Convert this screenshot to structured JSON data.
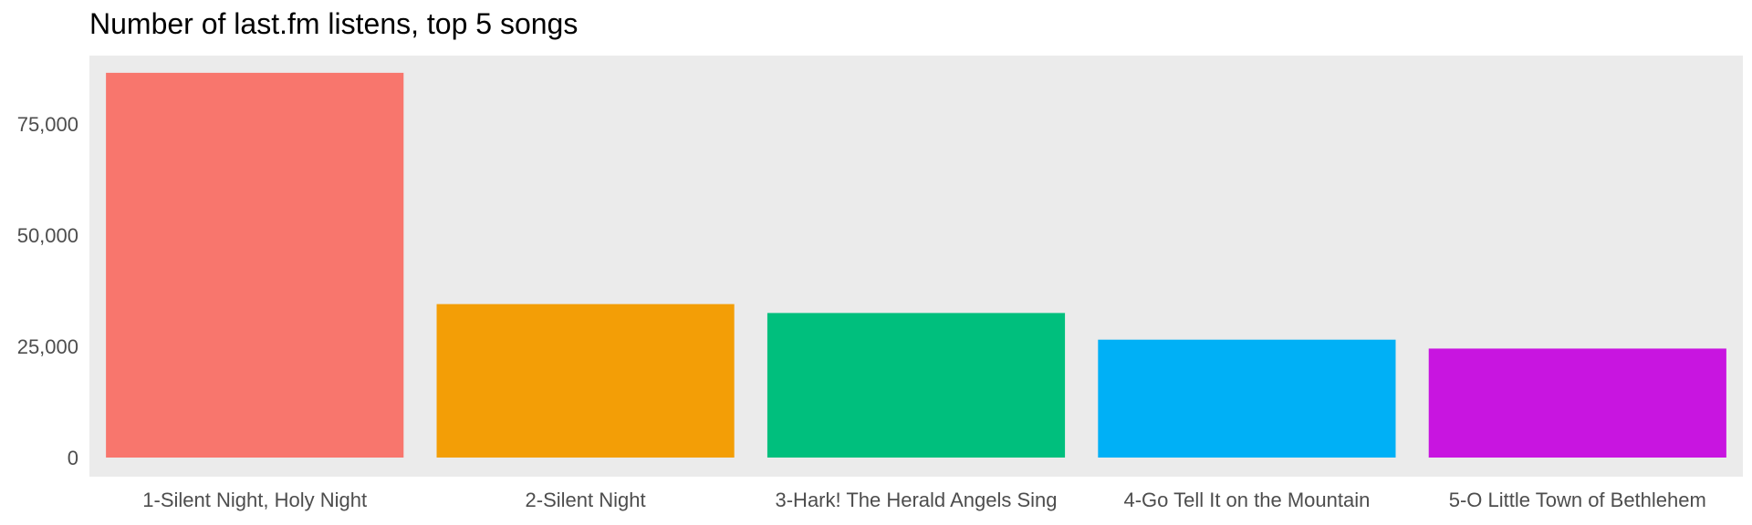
{
  "chart_data": {
    "type": "bar",
    "title": "Number of last.fm listens, top 5 songs",
    "xlabel": "",
    "ylabel": "",
    "categories": [
      "1-Silent Night, Holy Night",
      "2-Silent Night",
      "3-Hark! The Herald Angels Sing",
      "4-Go Tell It on the Mountain",
      "5-O Little Town of Bethlehem"
    ],
    "values": [
      86500,
      34500,
      32500,
      26500,
      24500
    ],
    "colors": [
      "#F8766D",
      "#F39E06",
      "#00BF7D",
      "#00B0F6",
      "#C815E0"
    ],
    "ylim": [
      0,
      90000
    ],
    "yticks": [
      0,
      25000,
      50000,
      75000
    ],
    "ytick_labels": [
      "0",
      "25,000",
      "50,000",
      "75,000"
    ],
    "grid": false,
    "legend": "none",
    "panel_background": "#EBEBEB"
  }
}
